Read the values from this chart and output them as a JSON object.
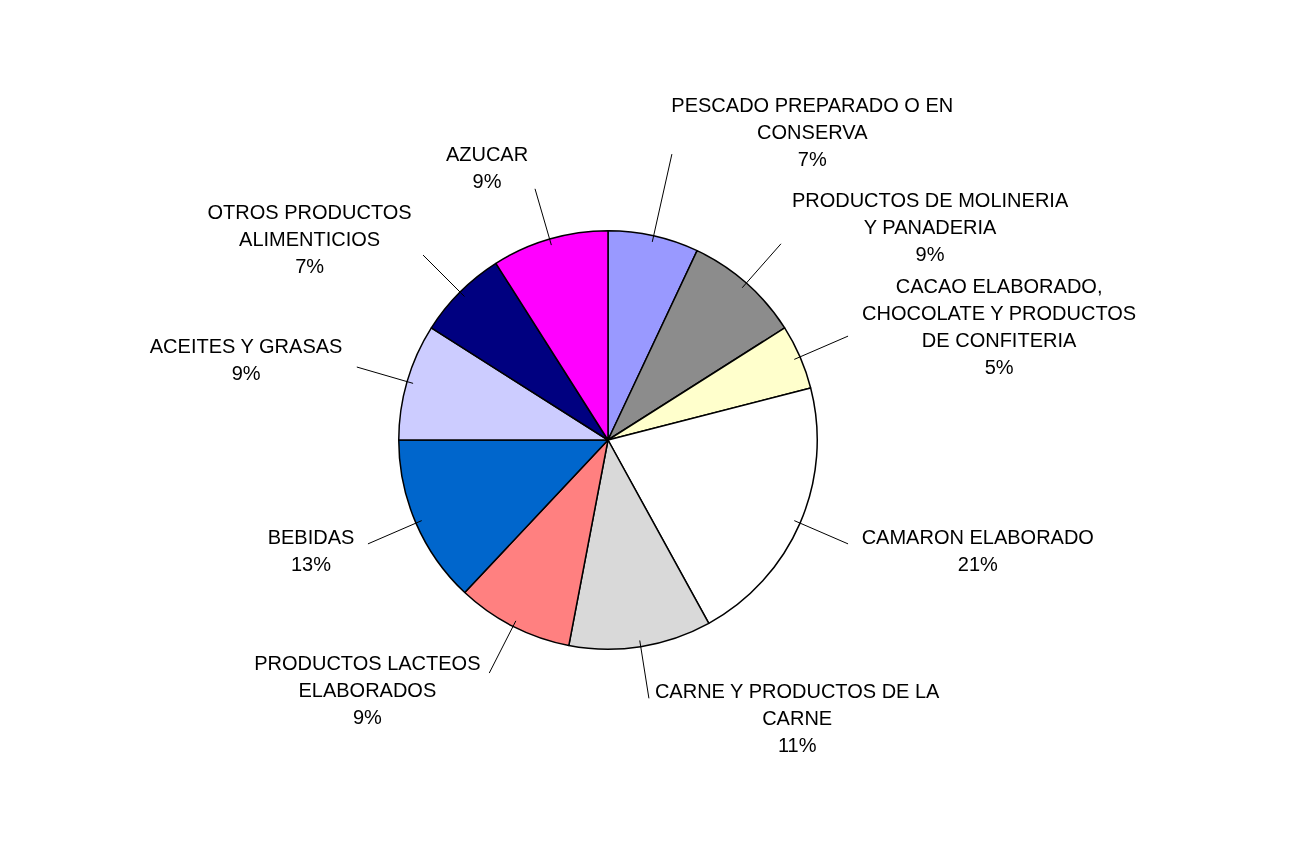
{
  "chart_data": {
    "type": "pie",
    "categories": [
      "PESCADO PREPARADO O EN CONSERVA",
      "PRODUCTOS DE MOLINERIA Y PANADERIA",
      "CACAO ELABORADO, CHOCOLATE Y PRODUCTOS DE CONFITERIA",
      "CAMARON ELABORADO",
      "CARNE Y PRODUCTOS DE LA CARNE",
      "PRODUCTOS LACTEOS ELABORADOS",
      "BEBIDAS",
      "ACEITES Y GRASAS",
      "OTROS PRODUCTOS ALIMENTICIOS",
      "AZUCAR"
    ],
    "values": [
      7,
      9,
      5,
      21,
      11,
      9,
      13,
      9,
      7,
      9
    ],
    "value_labels": [
      "7%",
      "9%",
      "5%",
      "21%",
      "11%",
      "9%",
      "13%",
      "9%",
      "7%",
      "9%"
    ],
    "colors": [
      "#9999ff",
      "#8c8c8c",
      "#ffffcc",
      "#ffffff",
      "#d9d9d9",
      "#ff8080",
      "#0066cc",
      "#ccccff",
      "#000080",
      "#ff00ff"
    ],
    "legend": false
  }
}
